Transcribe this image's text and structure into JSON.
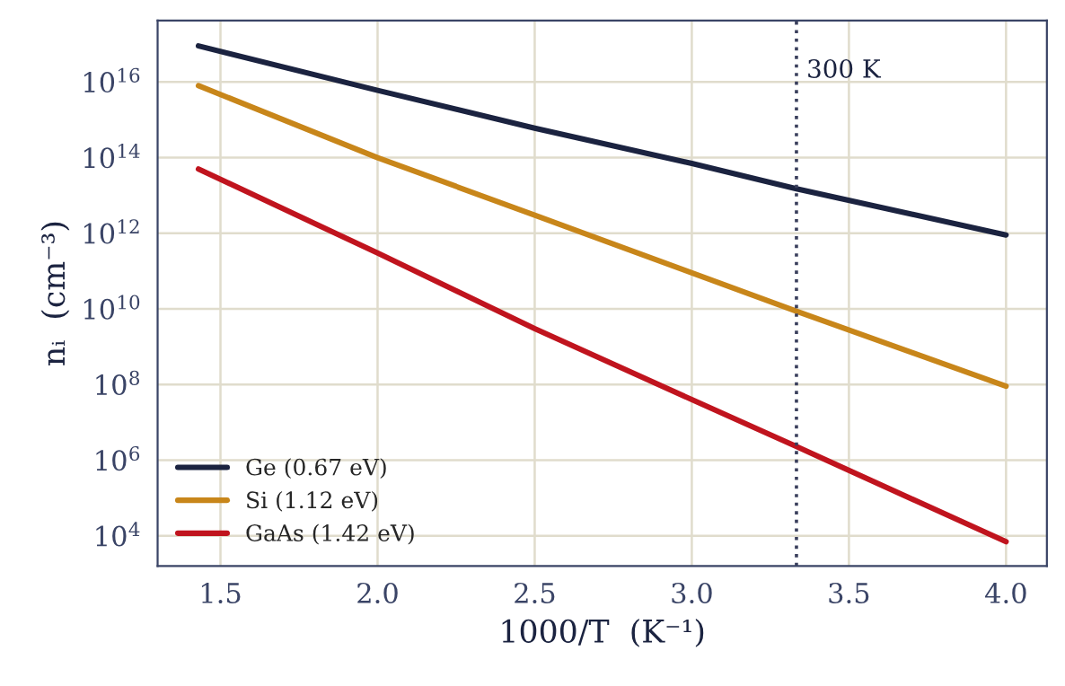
{
  "chart_data": {
    "type": "line",
    "xlabel": "1000/T  (K⁻¹)",
    "ylabel": "nᵢ  (cm⁻³)",
    "x": [
      1.43,
      2.0,
      2.5,
      3.0,
      3.333,
      4.0
    ],
    "series": [
      {
        "name": "Ge (0.67 eV)",
        "color": "#1b2340",
        "values": [
          9e+16,
          6000000000000000.0,
          600000000000000.0,
          70000000000000.0,
          15000000000000.0,
          900000000000.0
        ]
      },
      {
        "name": "Si (1.12 eV)",
        "color": "#c8861a",
        "values": [
          8000000000000000.0,
          100000000000000.0,
          3000000000000.0,
          90000000000.0,
          8700000000.0,
          90000000.0
        ]
      },
      {
        "name": "GaAs (1.42 eV)",
        "color": "#c0141e",
        "values": [
          50000000000000.0,
          300000000000.0,
          3000000000.0,
          40000000.0,
          2300000.0,
          7000.0
        ]
      }
    ],
    "log": "y",
    "xlim": [
      1.3,
      4.13
    ],
    "ylim": [
      1600.0,
      4.2e+17
    ],
    "xticks": [
      1.5,
      {
        "value": 2,
        "label": "2.0"
      },
      2.5,
      {
        "value": 3,
        "label": "3.0"
      },
      3.5,
      {
        "value": 4,
        "label": "4.0"
      }
    ],
    "yticks": [
      {
        "value": 10000.0,
        "label": "10$^{4}$"
      },
      {
        "value": 1000000.0,
        "label": "10$^{6}$"
      },
      {
        "value": 100000000.0,
        "label": "10$^{8}$"
      },
      {
        "value": 10000000000.0,
        "label": "10$^{10}$"
      },
      {
        "value": 1000000000000.0,
        "label": "10$^{12}$"
      },
      {
        "value": 100000000000000.0,
        "label": "10$^{14}$"
      },
      {
        "value": 1e+16,
        "label": "10$^{16}$"
      }
    ],
    "ref_lines": [
      {
        "axis": "x",
        "value": 3.333,
        "label": "300 K",
        "color": "#3a3f5c",
        "line_style": "dotted"
      }
    ],
    "grid": true,
    "legend": "bottom left",
    "marker": "none",
    "line_style": "solid"
  }
}
